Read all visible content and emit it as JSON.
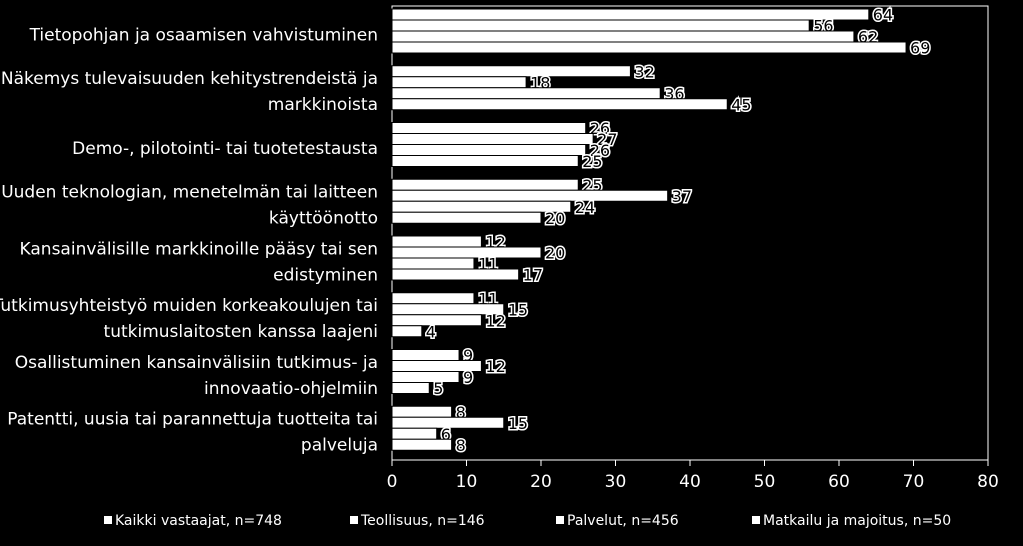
{
  "chart_data": {
    "type": "bar",
    "orientation": "horizontal",
    "categories": [
      [
        "Tietopohjan ja osaamisen vahvistuminen"
      ],
      [
        "Näkemys tulevaisuuden kehitystrendeistä ja",
        "markkinoista"
      ],
      [
        "Demo-, pilotointi- tai tuotetestausta"
      ],
      [
        "Uuden teknologian, menetelmän tai laitteen",
        "käyttöönotto"
      ],
      [
        "Kansainvälisille markkinoille pääsy tai sen",
        "edistyminen"
      ],
      [
        "Tutkimusyhteistyö muiden korkeakoulujen tai",
        "tutkimuslaitosten kanssa laajeni"
      ],
      [
        "Osallistuminen kansainvälisiin tutkimus- ja",
        "innovaatio-ohjelmiin"
      ],
      [
        "Patentti, uusia tai parannettuja tuotteita tai",
        "palveluja"
      ]
    ],
    "series": [
      {
        "name": "Kaikki vastaajat, n=748",
        "values": [
          64,
          32,
          26,
          25,
          12,
          11,
          9,
          8
        ]
      },
      {
        "name": "Teollisuus, n=146",
        "values": [
          56,
          18,
          27,
          37,
          20,
          15,
          12,
          15
        ]
      },
      {
        "name": "Palvelut, n=456",
        "values": [
          62,
          36,
          26,
          24,
          11,
          12,
          9,
          6
        ]
      },
      {
        "name": "Matkailu ja majoitus, n=50",
        "values": [
          69,
          45,
          25,
          20,
          17,
          4,
          5,
          8
        ]
      }
    ],
    "xlim": [
      0,
      80
    ],
    "xticks": [
      0,
      10,
      20,
      30,
      40,
      50,
      60,
      70,
      80
    ],
    "legend_position": "bottom",
    "colors": {
      "background": "#000000",
      "bar": "#ffffff",
      "bar_border": "#000000",
      "text": "#ffffff",
      "value_text": "#000000"
    }
  }
}
